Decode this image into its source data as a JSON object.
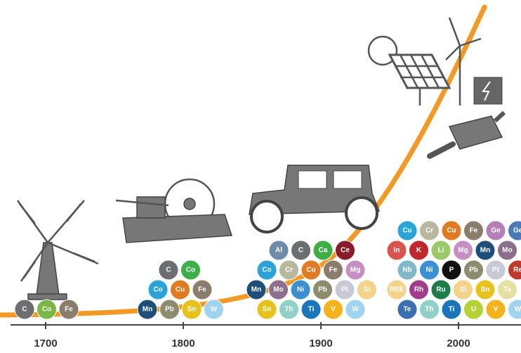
{
  "axis": {
    "ticks": [
      1700,
      1800,
      1900,
      2000
    ]
  },
  "groups": [
    {
      "rows": [
        [
          {
            "label": "C",
            "color": "#6d6e70"
          },
          {
            "label": "Co",
            "color": "#7ab648"
          },
          {
            "label": "Fe",
            "color": "#8b7d6b"
          }
        ]
      ]
    },
    {
      "rows": [
        [
          {
            "label": "Mn",
            "color": "#1f4e79"
          },
          {
            "label": "Pb",
            "color": "#8c8c6e"
          },
          {
            "label": "Sn",
            "color": "#e8c21c"
          },
          {
            "label": "W",
            "color": "#9fd3ef"
          }
        ],
        [
          {
            "label": "Co",
            "color": "#2aa3d8"
          },
          {
            "label": "Cu",
            "color": "#e07b24"
          },
          {
            "label": "Fe",
            "color": "#8b7d6b"
          }
        ],
        [
          {
            "label": "C",
            "color": "#6d6e70"
          },
          {
            "label": "Co",
            "color": "#3fae49"
          }
        ]
      ]
    },
    {
      "rows": [
        [
          {
            "label": "Sn",
            "color": "#e8c21c"
          },
          {
            "label": "Th",
            "color": "#8fd0c8"
          },
          {
            "label": "Ti",
            "color": "#1b75bb"
          },
          {
            "label": "V",
            "color": "#f6b21b"
          },
          {
            "label": "W",
            "color": "#9fd3ef"
          }
        ],
        [
          {
            "label": "Mn",
            "color": "#1f4e79"
          },
          {
            "label": "Mo",
            "color": "#8c6f8c"
          },
          {
            "label": "Ni",
            "color": "#3a8fd0"
          },
          {
            "label": "Pb",
            "color": "#8c8c6e"
          },
          {
            "label": "Pt",
            "color": "#c9c9d6"
          },
          {
            "label": "Si",
            "color": "#f3d28a"
          }
        ],
        [
          {
            "label": "Co",
            "color": "#2aa3d8"
          },
          {
            "label": "Cr",
            "color": "#b8b8a0"
          },
          {
            "label": "Cu",
            "color": "#e07b24"
          },
          {
            "label": "Fe",
            "color": "#8b7d6b"
          },
          {
            "label": "Mg",
            "color": "#c68fc4"
          }
        ],
        [
          {
            "label": "Al",
            "color": "#6e8ba8"
          },
          {
            "label": "C",
            "color": "#6d6e70"
          },
          {
            "label": "Ca",
            "color": "#3fae49"
          },
          {
            "label": "Ce",
            "color": "#8b1a2b"
          }
        ]
      ]
    },
    {
      "rows": [
        [
          {
            "label": "Te",
            "color": "#3a6fb0"
          },
          {
            "label": "Th",
            "color": "#8fd0c8"
          },
          {
            "label": "Ti",
            "color": "#1b75bb"
          },
          {
            "label": "U",
            "color": "#b3d334"
          },
          {
            "label": "V",
            "color": "#f6b21b"
          },
          {
            "label": "W",
            "color": "#9fd3ef"
          }
        ],
        [
          {
            "label": "REE",
            "color": "#f3d28a"
          },
          {
            "label": "Rh",
            "color": "#a23b8c"
          },
          {
            "label": "Ru",
            "color": "#1e7b4a"
          },
          {
            "label": "Si",
            "color": "#f3d28a"
          },
          {
            "label": "Sn",
            "color": "#e8c21c"
          },
          {
            "label": "Ta",
            "color": "#e6e0a0"
          }
        ],
        [
          {
            "label": "Nb",
            "color": "#7fb9c9"
          },
          {
            "label": "Ni",
            "color": "#3a8fd0"
          },
          {
            "label": "P",
            "color": "#111111"
          },
          {
            "label": "Pb",
            "color": "#8c8c6e"
          },
          {
            "label": "Pt",
            "color": "#c9c9d6"
          },
          {
            "label": "Re",
            "color": "#c0392b"
          }
        ],
        [
          {
            "label": "In",
            "color": "#d9534f"
          },
          {
            "label": "K",
            "color": "#c0272d"
          },
          {
            "label": "Li",
            "color": "#9cc96b"
          },
          {
            "label": "Mg",
            "color": "#c68fc4"
          },
          {
            "label": "Mn",
            "color": "#1f4e79"
          },
          {
            "label": "Mo",
            "color": "#8c6f8c"
          }
        ],
        [
          {
            "label": "Cu",
            "color": "#2aa3d8"
          },
          {
            "label": "Cr",
            "color": "#b8b8a0"
          },
          {
            "label": "Cu",
            "color": "#e07b24"
          },
          {
            "label": "Fe",
            "color": "#8b7d6b"
          },
          {
            "label": "Ge",
            "color": "#b77fb7"
          },
          {
            "label": "Ge",
            "color": "#4a7ab8"
          }
        ]
      ]
    }
  ]
}
